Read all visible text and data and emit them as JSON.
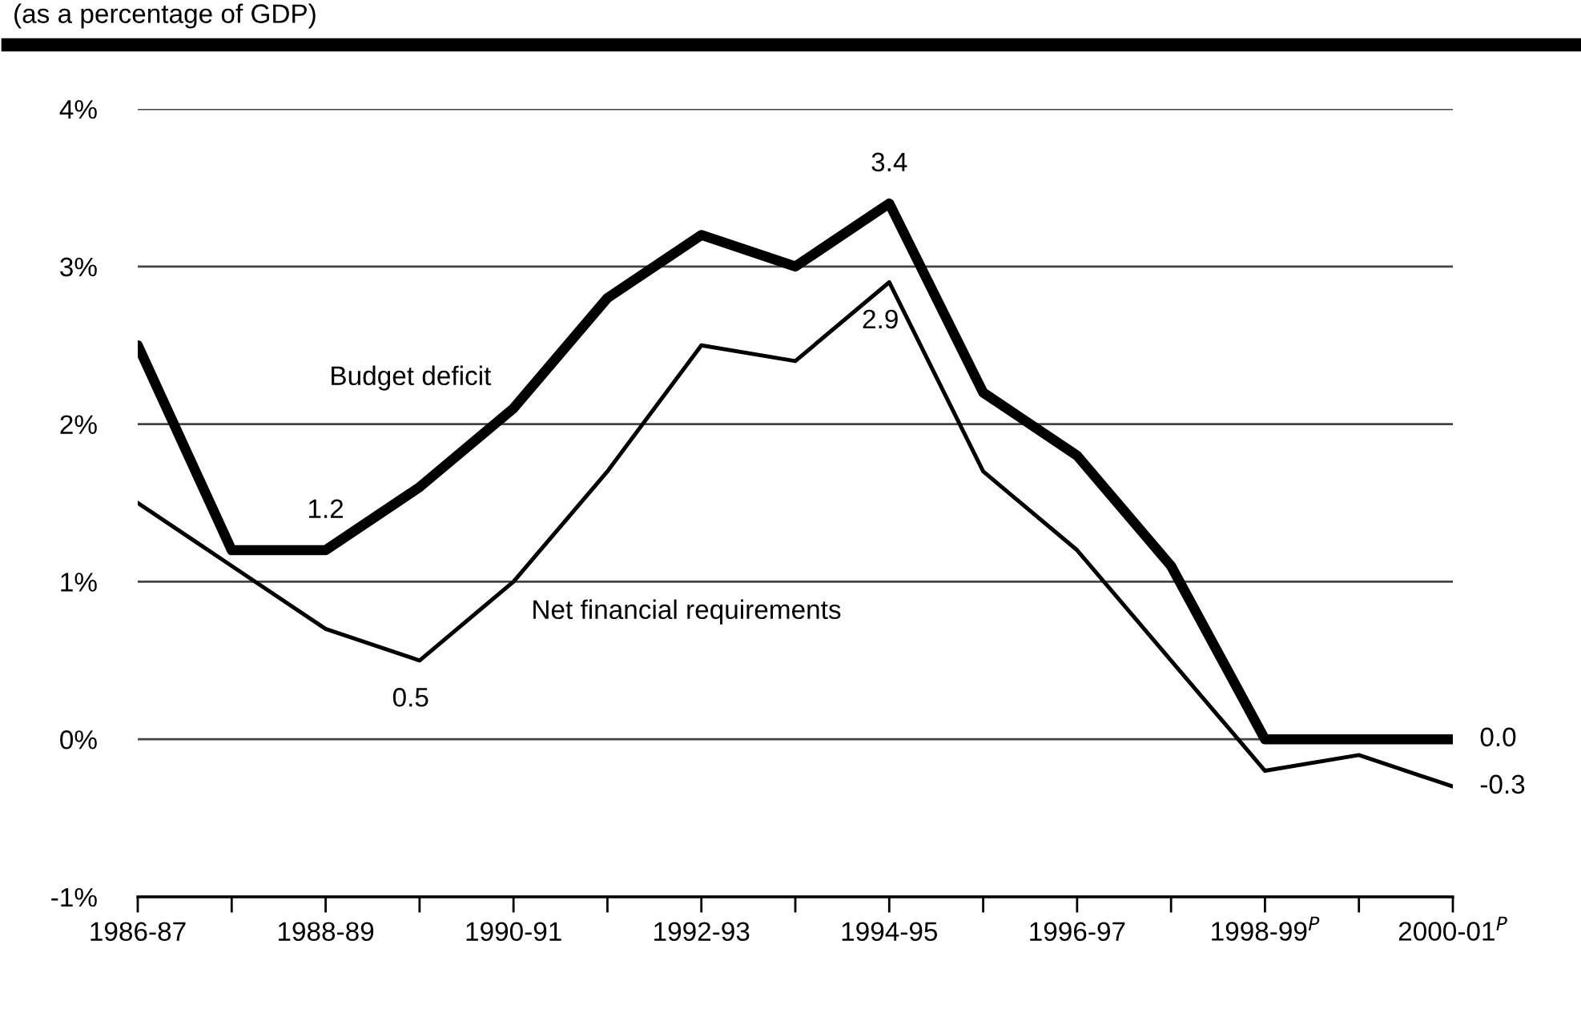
{
  "chart_data": {
    "type": "line",
    "subtitle": "(as a percentage of GDP)",
    "categories": [
      "1986-87",
      null,
      "1988-89",
      null,
      "1990-91",
      null,
      "1992-93",
      null,
      "1994-95",
      null,
      "1996-97",
      null,
      "1998-99$^{P}$",
      null,
      "2000-01$^{P}$"
    ],
    "series": [
      {
        "name": "Budget deficit",
        "color": "#000000",
        "values": [
          2.5,
          1.2,
          1.2,
          1.6,
          2.1,
          2.8,
          3.2,
          3.0,
          3.4,
          2.2,
          1.8,
          1.1,
          0.0,
          0.0,
          0.0
        ],
        "value_labels": [
          null,
          null,
          "1.2",
          null,
          null,
          null,
          null,
          null,
          "3.4",
          null,
          null,
          null,
          null,
          null,
          "0.0"
        ]
      },
      {
        "name": "Net financial requirements",
        "color": "#000000",
        "values": [
          1.5,
          1.1,
          0.7,
          0.5,
          1.0,
          1.7,
          2.5,
          2.4,
          2.9,
          1.7,
          1.2,
          0.5,
          -0.2,
          -0.1,
          -0.3
        ],
        "value_labels": [
          null,
          null,
          null,
          "0.5",
          null,
          null,
          null,
          null,
          "2.9",
          null,
          null,
          null,
          null,
          null,
          "-0.3"
        ]
      }
    ],
    "ylim": [
      -1,
      4
    ],
    "yticks": [
      {
        "value": -1,
        "label": "-1%"
      },
      {
        "value": 0,
        "label": "0%"
      },
      {
        "value": 1,
        "label": "1%"
      },
      {
        "value": 2,
        "label": "2%"
      },
      {
        "value": 3,
        "label": "3%"
      },
      {
        "value": 4,
        "label": "4%"
      }
    ],
    "grid": "y",
    "legend": false,
    "marker": "none",
    "line_style": "solid"
  }
}
